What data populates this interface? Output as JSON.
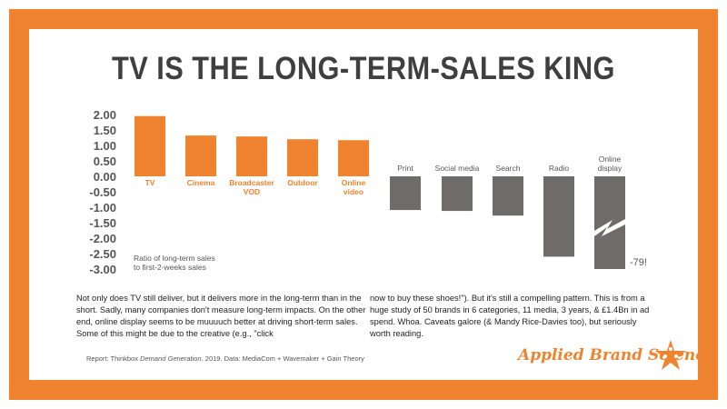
{
  "title": "TV IS THE LONG-TERM-SALES KING",
  "chart_data": {
    "type": "bar",
    "ylabel": "Ratio of long-term sales to first-2-weeks sales",
    "ylim": [
      -3,
      2
    ],
    "yticks": [
      "2.00",
      "1.50",
      "1.00",
      "0.50",
      "0.00",
      "-0.50",
      "-1.00",
      "-1.50",
      "-2.00",
      "-2.50",
      "-3.00"
    ],
    "ytick_values": [
      2,
      1.5,
      1,
      0.5,
      0,
      -0.5,
      -1,
      -1.5,
      -2,
      -2.5,
      -3
    ],
    "categories": [
      "TV",
      "Cinema",
      "Broadcaster VOD",
      "Outdoor",
      "Online video",
      "Print",
      "Social media",
      "Search",
      "Radio",
      "Online display"
    ],
    "values": [
      1.95,
      1.32,
      1.29,
      1.2,
      1.17,
      -1.09,
      -1.12,
      -1.27,
      -2.6,
      -79
    ],
    "positive_color": "#f0832f",
    "negative_color": "#6f6b69",
    "annotation": "-79!",
    "axis_break": "Online display"
  },
  "text": {
    "left": "Not only does TV still deliver, but it delivers more in the long-term than in the short. Sadly, many companies don't measure long-term impacts. On the other end, online display seems to be muuuuch better at driving short-term sales. Some of this might be due to the creative (e.g., \"click",
    "right": "now to buy these shoes!\"). But it's still a compelling pattern. This is from a huge study of 50 brands in 6 categories, 11 media, 3 years, & £1.4Bn in ad spend. Whoa. Caveats galore (& Mandy Rice-Davies too), but seriously worth reading.",
    "source_pre": "Report: Thinkbox ",
    "source_italic": "Demand Generation",
    "source_post": ". 2019.  Data: MediaCom + Wavemaker + Gain Theory",
    "logo": "Applied Brand Science"
  }
}
